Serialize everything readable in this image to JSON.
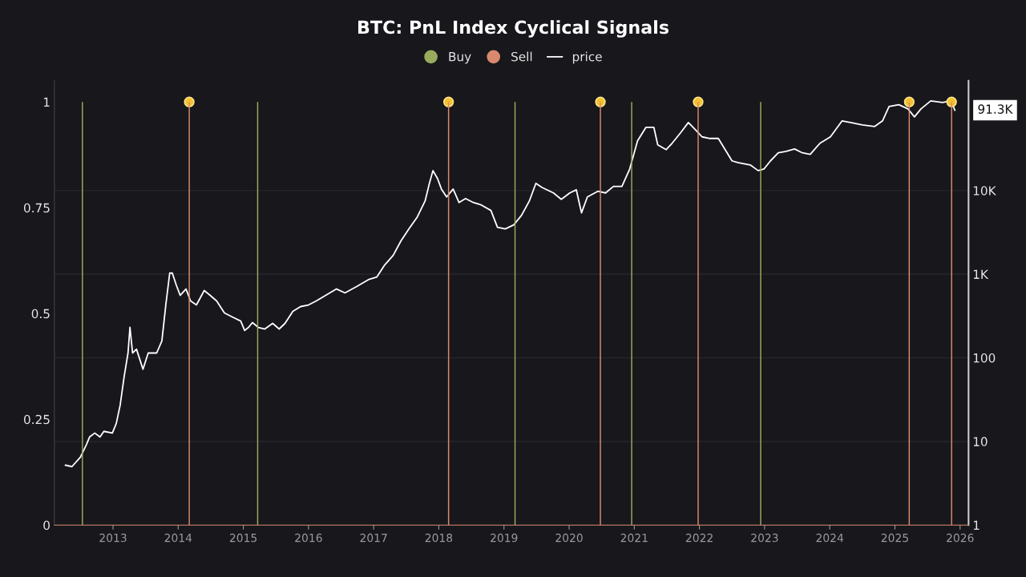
{
  "chart_data": {
    "type": "line",
    "title": "BTC: PnL Index Cyclical Signals",
    "series": [
      {
        "name": "Buy",
        "type": "bar",
        "color": "#9aab5e",
        "x": [
          2012.53,
          2015.22,
          2019.17,
          2020.96,
          2022.94
        ],
        "values": [
          1,
          1,
          1,
          1,
          1
        ]
      },
      {
        "name": "Sell",
        "type": "bar",
        "color": "#d98a6e",
        "x": [
          2014.17,
          2018.15,
          2020.48,
          2021.98,
          2025.22,
          2025.87
        ],
        "values": [
          1,
          1,
          1,
          1,
          1,
          1
        ]
      },
      {
        "type": "scatter",
        "color": "#f2c12e",
        "marker": "circle",
        "x": [
          2014.17,
          2018.15,
          2020.48,
          2021.98,
          2025.22,
          2025.87
        ],
        "values": [
          1,
          1,
          1,
          1,
          1,
          1
        ]
      },
      {
        "name": "price",
        "color": "#ffffff",
        "axis": "y2",
        "x": [
          2012.27,
          2012.37,
          2012.5,
          2012.59,
          2012.64,
          2012.72,
          2012.8,
          2012.86,
          2012.99,
          2013.05,
          2013.11,
          2013.17,
          2013.23,
          2013.26,
          2013.3,
          2013.36,
          2013.46,
          2013.54,
          2013.67,
          2013.75,
          2013.81,
          2013.87,
          2013.91,
          2013.97,
          2014.03,
          2014.12,
          2014.19,
          2014.28,
          2014.4,
          2014.49,
          2014.59,
          2014.71,
          2014.83,
          2014.96,
          2015.02,
          2015.08,
          2015.14,
          2015.23,
          2015.33,
          2015.45,
          2015.55,
          2015.64,
          2015.76,
          2015.88,
          2016.0,
          2016.12,
          2016.43,
          2016.56,
          2016.74,
          2016.93,
          2017.05,
          2017.17,
          2017.3,
          2017.42,
          2017.54,
          2017.67,
          2017.79,
          2017.85,
          2017.91,
          2017.98,
          2018.04,
          2018.12,
          2018.22,
          2018.31,
          2018.41,
          2018.53,
          2018.65,
          2018.8,
          2018.9,
          2019.02,
          2019.15,
          2019.27,
          2019.39,
          2019.49,
          2019.58,
          2019.76,
          2019.88,
          2020.01,
          2020.11,
          2020.19,
          2020.28,
          2020.44,
          2020.56,
          2020.68,
          2020.81,
          2020.93,
          2021.05,
          2021.18,
          2021.3,
          2021.36,
          2021.49,
          2021.58,
          2021.71,
          2021.83,
          2021.95,
          2022.04,
          2022.16,
          2022.29,
          2022.41,
          2022.5,
          2022.59,
          2022.78,
          2022.9,
          2022.99,
          2023.09,
          2023.21,
          2023.33,
          2023.46,
          2023.58,
          2023.7,
          2023.85,
          2024.01,
          2024.19,
          2024.32,
          2024.5,
          2024.69,
          2024.81,
          2024.91,
          2025.06,
          2025.2,
          2025.3,
          2025.4,
          2025.55,
          2025.73,
          2025.86,
          2025.92
        ],
        "values": [
          5.2,
          5.0,
          6.5,
          9.1,
          11.3,
          12.6,
          11.3,
          13.2,
          12.6,
          16.4,
          27.2,
          59,
          114,
          231,
          114,
          127,
          73,
          114,
          114,
          159,
          428,
          1030,
          1030,
          743,
          558,
          665,
          478,
          428,
          637,
          558,
          478,
          344,
          308,
          275,
          212,
          231,
          264,
          231,
          221,
          258,
          221,
          258,
          359,
          410,
          428,
          478,
          665,
          596,
          711,
          867,
          926,
          1290,
          1680,
          2500,
          3470,
          4830,
          7510,
          11700,
          17300,
          13900,
          10400,
          8380,
          10400,
          7180,
          8020,
          7180,
          6730,
          5770,
          3630,
          3470,
          3880,
          5050,
          7510,
          12200,
          10900,
          9350,
          7850,
          9350,
          10200,
          5400,
          8380,
          9780,
          9350,
          11200,
          11200,
          18100,
          39200,
          57000,
          57000,
          35100,
          30800,
          36700,
          48900,
          65000,
          52200,
          43800,
          41900,
          41900,
          29400,
          22600,
          21600,
          20200,
          17300,
          18100,
          22600,
          28200,
          29400,
          31400,
          28200,
          27000,
          36700,
          43800,
          68000,
          65000,
          60900,
          58300,
          68000,
          101000,
          106000,
          94600,
          75900,
          94600,
          118000,
          113000,
          118000,
          91300
        ]
      }
    ],
    "xlim": [
      2012.1,
      2026.13
    ],
    "xticks": [
      2013,
      2014,
      2015,
      2016,
      2017,
      2018,
      2019,
      2020,
      2021,
      2022,
      2023,
      2024,
      2025,
      2026
    ],
    "ylim": [
      0,
      1.05
    ],
    "yticks": [
      0,
      0.25,
      0.5,
      0.75,
      1
    ],
    "y2lim": [
      1,
      205000
    ],
    "y2ticks": [
      1,
      10,
      100,
      {
        "value": 1000,
        "label": "1K"
      },
      {
        "value": 10000,
        "label": "10K"
      }
    ],
    "log": "y2",
    "grid": "y",
    "legend": "top",
    "annotations": [
      "91.3K"
    ]
  }
}
